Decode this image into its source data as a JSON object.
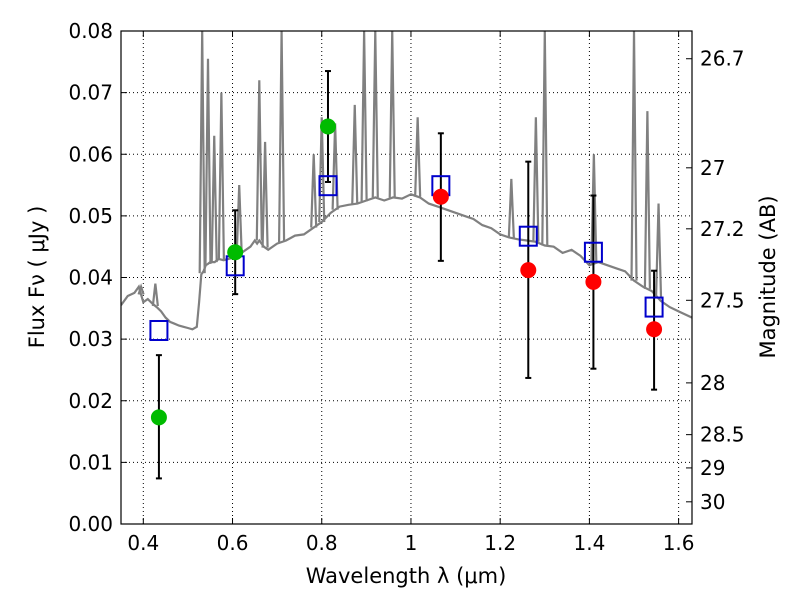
{
  "chart_data": {
    "type": "scatter",
    "xlabel": "Wavelength  λ (μm)",
    "ylabel": "Flux  Fν  ( μJy )",
    "y2label": "Magnitude (AB)",
    "xlim": [
      0.35,
      1.63
    ],
    "ylim": [
      0.0,
      0.08
    ],
    "grid": true,
    "x_ticks": [
      0.4,
      0.6,
      0.8,
      1.0,
      1.2,
      1.4,
      1.6
    ],
    "x_tick_labels": [
      "0.4",
      "0.6",
      "0.8",
      "1",
      "1.2",
      "1.4",
      "1.6"
    ],
    "y_ticks": [
      0.0,
      0.01,
      0.02,
      0.03,
      0.04,
      0.05,
      0.06,
      0.07,
      0.08
    ],
    "y_tick_labels": [
      "0.00",
      "0.01",
      "0.02",
      "0.03",
      "0.04",
      "0.05",
      "0.06",
      "0.07",
      "0.08"
    ],
    "y2_ticks": [
      {
        "label": "26.7",
        "flux": 0.0755
      },
      {
        "label": "27",
        "flux": 0.0578
      },
      {
        "label": "27.2",
        "flux": 0.0479
      },
      {
        "label": "27.5",
        "flux": 0.0363
      },
      {
        "label": "28",
        "flux": 0.0229
      },
      {
        "label": "28.5",
        "flux": 0.0145
      },
      {
        "label": "29",
        "flux": 0.0091
      },
      {
        "label": "30",
        "flux": 0.0036
      }
    ],
    "colors": {
      "template": "#808080",
      "detection": "#00bb00",
      "upper_limit": "#ff0000",
      "model": "#0000cc",
      "errorbar": "#000000"
    },
    "template_spectrum": {
      "x": [
        0.35,
        0.365,
        0.38,
        0.39,
        0.4,
        0.41,
        0.42,
        0.43,
        0.44,
        0.45,
        0.46,
        0.47,
        0.48,
        0.49,
        0.5,
        0.51,
        0.52,
        0.525,
        0.53,
        0.535,
        0.54,
        0.545,
        0.55,
        0.56,
        0.565,
        0.57,
        0.58,
        0.59,
        0.6,
        0.62,
        0.64,
        0.65,
        0.655,
        0.66,
        0.67,
        0.68,
        0.7,
        0.72,
        0.74,
        0.76,
        0.78,
        0.8,
        0.82,
        0.84,
        0.86,
        0.88,
        0.9,
        0.92,
        0.94,
        0.96,
        0.98,
        1.0,
        1.02,
        1.04,
        1.06,
        1.08,
        1.1,
        1.12,
        1.14,
        1.16,
        1.18,
        1.2,
        1.22,
        1.24,
        1.26,
        1.28,
        1.3,
        1.32,
        1.34,
        1.36,
        1.38,
        1.4,
        1.42,
        1.44,
        1.46,
        1.48,
        1.5,
        1.52,
        1.54,
        1.56,
        1.58,
        1.6,
        1.63
      ],
      "y": [
        0.0355,
        0.037,
        0.0375,
        0.0385,
        0.036,
        0.0365,
        0.0358,
        0.0352,
        0.0345,
        0.0335,
        0.0328,
        0.0325,
        0.0322,
        0.032,
        0.0318,
        0.0316,
        0.032,
        0.036,
        0.0405,
        0.041,
        0.042,
        0.0422,
        0.0425,
        0.0425,
        0.0428,
        0.043,
        0.0428,
        0.043,
        0.0432,
        0.044,
        0.045,
        0.046,
        0.0455,
        0.046,
        0.045,
        0.0445,
        0.0455,
        0.046,
        0.0468,
        0.047,
        0.048,
        0.049,
        0.0505,
        0.0515,
        0.0518,
        0.052,
        0.0525,
        0.053,
        0.0525,
        0.053,
        0.0528,
        0.0535,
        0.053,
        0.052,
        0.0515,
        0.051,
        0.0505,
        0.05,
        0.0495,
        0.0485,
        0.048,
        0.047,
        0.0465,
        0.0462,
        0.046,
        0.0458,
        0.0452,
        0.045,
        0.044,
        0.0445,
        0.0435,
        0.042,
        0.0425,
        0.042,
        0.0415,
        0.041,
        0.0395,
        0.0385,
        0.0378,
        0.0362,
        0.0352,
        0.0345,
        0.0335
      ]
    },
    "emission_lines": [
      {
        "x": 0.395,
        "peak": 0.0385
      },
      {
        "x": 0.427,
        "peak": 0.039
      },
      {
        "x": 0.532,
        "peak": 0.08
      },
      {
        "x": 0.545,
        "peak": 0.0755
      },
      {
        "x": 0.559,
        "peak": 0.063
      },
      {
        "x": 0.575,
        "peak": 0.07
      },
      {
        "x": 0.615,
        "peak": 0.055
      },
      {
        "x": 0.66,
        "peak": 0.072
      },
      {
        "x": 0.673,
        "peak": 0.062
      },
      {
        "x": 0.71,
        "peak": 0.08
      },
      {
        "x": 0.782,
        "peak": 0.06
      },
      {
        "x": 0.8,
        "peak": 0.066
      },
      {
        "x": 0.83,
        "peak": 0.065
      },
      {
        "x": 0.874,
        "peak": 0.068
      },
      {
        "x": 0.895,
        "peak": 0.08
      },
      {
        "x": 0.92,
        "peak": 0.08
      },
      {
        "x": 0.958,
        "peak": 0.08
      },
      {
        "x": 1.015,
        "peak": 0.066
      },
      {
        "x": 1.225,
        "peak": 0.056
      },
      {
        "x": 1.28,
        "peak": 0.066
      },
      {
        "x": 1.3,
        "peak": 0.08
      },
      {
        "x": 1.41,
        "peak": 0.06
      },
      {
        "x": 1.5,
        "peak": 0.08
      },
      {
        "x": 1.53,
        "peak": 0.067
      },
      {
        "x": 1.555,
        "peak": 0.052
      }
    ],
    "detections": [
      {
        "x": 0.435,
        "y": 0.0173,
        "yerr_low": 0.0074,
        "yerr_high": 0.0274
      },
      {
        "x": 0.606,
        "y": 0.0441,
        "yerr_low": 0.0373,
        "yerr_high": 0.0509
      },
      {
        "x": 0.814,
        "y": 0.0645,
        "yerr_low": 0.0555,
        "yerr_high": 0.0735
      }
    ],
    "upper_limits": [
      {
        "x": 1.067,
        "y": 0.0531,
        "yerr_low": 0.0427,
        "yerr_high": 0.0634
      },
      {
        "x": 1.263,
        "y": 0.0412,
        "yerr_low": 0.0237,
        "yerr_high": 0.0588
      },
      {
        "x": 1.409,
        "y": 0.0393,
        "yerr_low": 0.0252,
        "yerr_high": 0.0533
      },
      {
        "x": 1.545,
        "y": 0.0316,
        "yerr_low": 0.0218,
        "yerr_high": 0.0411
      }
    ],
    "model_fluxes": [
      {
        "x": 0.435,
        "y": 0.0314
      },
      {
        "x": 0.606,
        "y": 0.0419
      },
      {
        "x": 0.814,
        "y": 0.0549
      },
      {
        "x": 1.067,
        "y": 0.0549
      },
      {
        "x": 1.263,
        "y": 0.0467
      },
      {
        "x": 1.409,
        "y": 0.0441
      },
      {
        "x": 1.545,
        "y": 0.0352
      }
    ]
  }
}
